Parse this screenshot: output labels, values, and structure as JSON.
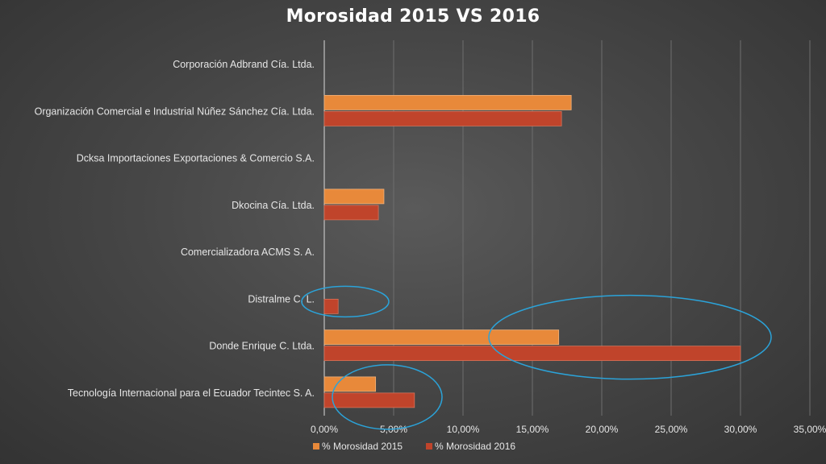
{
  "chart_data": {
    "type": "bar",
    "orientation": "horizontal",
    "title": "Morosidad 2015 VS 2016",
    "xlabel": "",
    "ylabel": "",
    "xlim": [
      0,
      35
    ],
    "x_ticks": [
      "0,00%",
      "5,00%",
      "10,00%",
      "15,00%",
      "20,00%",
      "25,00%",
      "30,00%",
      "35,00%"
    ],
    "categories": [
      "Corporación Adbrand Cía. Ltda.",
      "Organización Comercial e Industrial Núñez Sánchez Cía. Ltda.",
      "Dcksa Importaciones Exportaciones & Comercio S.A.",
      "Dkocina Cía. Ltda.",
      "Comercializadora ACMS S. A.",
      "Distralme C. L.",
      "Donde Enrique C. Ltda.",
      "Tecnología Internacional para el Ecuador Tecintec S. A."
    ],
    "series": [
      {
        "name": "% Morosidad 2015",
        "color": "#e8893a",
        "values": [
          0,
          17.8,
          0,
          4.3,
          0,
          0,
          16.9,
          3.7
        ]
      },
      {
        "name": "% Morosidad 2016",
        "color": "#c0442b",
        "values": [
          0,
          17.1,
          0,
          3.9,
          0,
          1.0,
          30.0,
          6.5
        ]
      }
    ],
    "grid": "vertical",
    "legend": "bottom",
    "annotations": [
      {
        "type": "ellipse",
        "color": "#2ba3d9",
        "target": "Distralme C. L."
      },
      {
        "type": "ellipse",
        "color": "#2ba3d9",
        "target": "Donde Enrique C. Ltda."
      },
      {
        "type": "ellipse",
        "color": "#2ba3d9",
        "target": "Tecnología Internacional para el Ecuador Tecintec S. A."
      }
    ]
  }
}
